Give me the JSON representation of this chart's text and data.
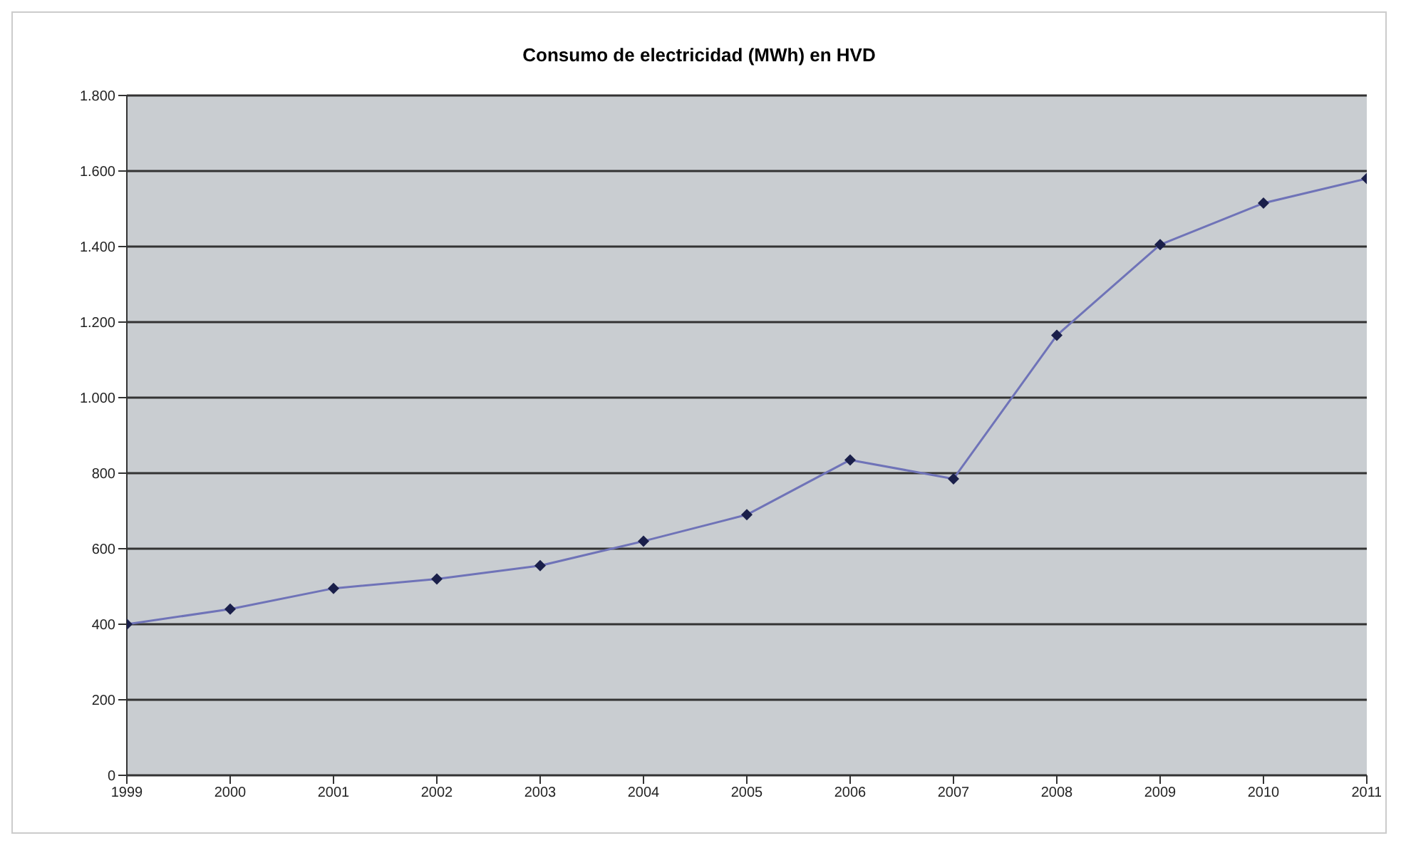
{
  "chart_data": {
    "type": "line",
    "title": "Consumo de electricidad (MWh) en HVD",
    "categories": [
      "1999",
      "2000",
      "2001",
      "2002",
      "2003",
      "2004",
      "2005",
      "2006",
      "2007",
      "2008",
      "2009",
      "2010",
      "2011"
    ],
    "series": [
      {
        "color": "#6f73b8",
        "values": [
          400,
          440,
          495,
          520,
          555,
          620,
          690,
          835,
          785,
          1165,
          1405,
          1515,
          1580
        ]
      }
    ],
    "ylim": [
      0,
      1800
    ],
    "yticks": [
      0,
      200,
      400,
      600,
      800,
      {
        "value": 1000,
        "label": "1.000"
      },
      {
        "value": 1200,
        "label": "1.200"
      },
      {
        "value": 1400,
        "label": "1.400"
      },
      {
        "value": 1600,
        "label": "1.600"
      },
      {
        "value": 1800,
        "label": "1.800"
      }
    ],
    "grid": "y",
    "marker": "diamond",
    "legend": false
  }
}
